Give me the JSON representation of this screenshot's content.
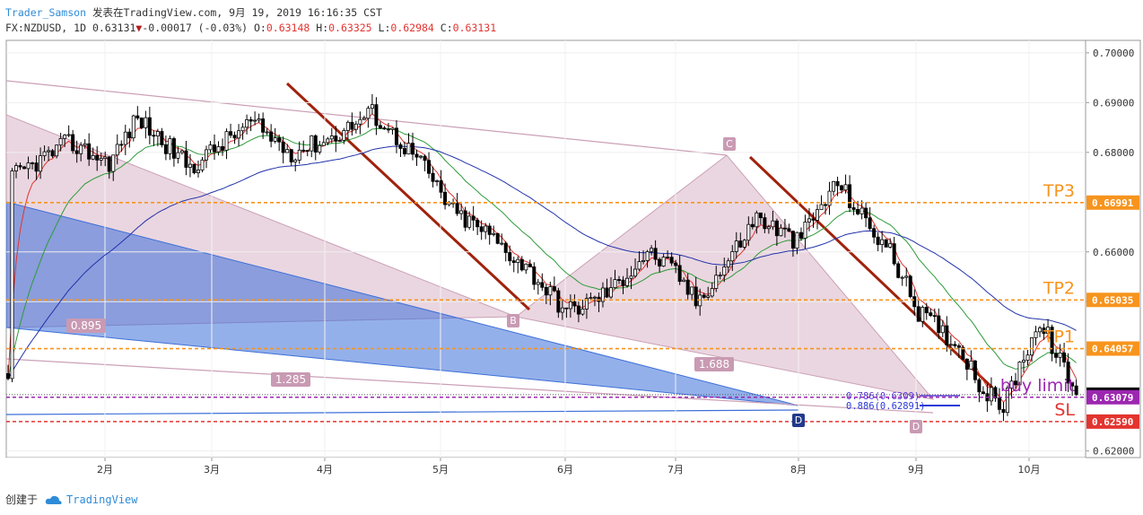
{
  "header": {
    "author": "Trader_Samson",
    "published": "发表在TradingView.com, 9月 19, 2019 16:16:35 CST",
    "symbol": "FX:NZDUSD, 1D",
    "last": "0.63131",
    "arrow": "▼",
    "change": "-0.00017 (-0.03%)",
    "o_label": "O:",
    "o": "0.63148",
    "h_label": "H:",
    "h": "0.63325",
    "l_label": "L:",
    "l": "0.62984",
    "c_label": "C:",
    "c": "0.63131"
  },
  "footer": {
    "created_with": "创建于",
    "brand": "TradingView"
  },
  "chart_data": {
    "type": "candlestick",
    "symbol": "FX:NZDUSD",
    "timeframe": "1D",
    "ylim": [
      0.6155,
      0.7035
    ],
    "y_ticks": [
      0.7,
      0.69,
      0.68,
      0.66,
      0.65,
      0.62
    ],
    "y_tick_labels": [
      "0.70000",
      "0.69000",
      "0.68000",
      "0.66000",
      "0.65000",
      "0.62000"
    ],
    "x_tick_labels": [
      "2月",
      "3月",
      "4月",
      "5月",
      "6月",
      "7月",
      "8月",
      "9月",
      "10月"
    ],
    "price_tags": [
      {
        "label": "0.66991",
        "value": 0.66991,
        "color": "#f7941d"
      },
      {
        "label": "0.65035",
        "value": 0.65035,
        "color": "#f7941d"
      },
      {
        "label": "0.64057",
        "value": 0.64057,
        "color": "#f7941d"
      },
      {
        "label": "0.63131",
        "value": 0.63131,
        "color": "#000000"
      },
      {
        "label": "0.63079",
        "value": 0.63079,
        "color": "#9c27b0"
      },
      {
        "label": "0.62590",
        "value": 0.6259,
        "color": "#e3342f"
      }
    ],
    "levels": [
      {
        "name": "TP3",
        "value": 0.66991,
        "color": "#f7941d"
      },
      {
        "name": "TP2",
        "value": 0.65035,
        "color": "#f7941d"
      },
      {
        "name": "TP1",
        "value": 0.64057,
        "color": "#f7941d"
      },
      {
        "name": "buy limit",
        "value": 0.63079,
        "color": "#9c27b0"
      },
      {
        "name": "SL",
        "value": 0.6259,
        "color": "#e3342f"
      }
    ],
    "harmonic_points": [
      "B",
      "C",
      "D",
      "D"
    ],
    "ratios": [
      "0.895",
      "1.285",
      "1.688"
    ],
    "fib_labels": [
      "0.786(0.6309)",
      "0.886(0.62891)"
    ],
    "close_path": [
      [
        1,
        0.675
      ],
      [
        15,
        0.682
      ],
      [
        25,
        0.678
      ],
      [
        32,
        0.687
      ],
      [
        45,
        0.677
      ],
      [
        60,
        0.686
      ],
      [
        70,
        0.68
      ],
      [
        80,
        0.683
      ],
      [
        90,
        0.688
      ],
      [
        102,
        0.678
      ],
      [
        110,
        0.668
      ],
      [
        118,
        0.664
      ],
      [
        128,
        0.657
      ],
      [
        138,
        0.648
      ],
      [
        144,
        0.65
      ],
      [
        150,
        0.653
      ],
      [
        158,
        0.66
      ],
      [
        165,
        0.656
      ],
      [
        170,
        0.65
      ],
      [
        176,
        0.656
      ],
      [
        185,
        0.667
      ],
      [
        195,
        0.662
      ],
      [
        205,
        0.674
      ],
      [
        212,
        0.666
      ],
      [
        218,
        0.66
      ],
      [
        225,
        0.648
      ],
      [
        231,
        0.644
      ],
      [
        236,
        0.64
      ],
      [
        241,
        0.632
      ],
      [
        246,
        0.629
      ],
      [
        250,
        0.637
      ],
      [
        254,
        0.645
      ],
      [
        257,
        0.643
      ],
      [
        263,
        0.633
      ]
    ]
  }
}
